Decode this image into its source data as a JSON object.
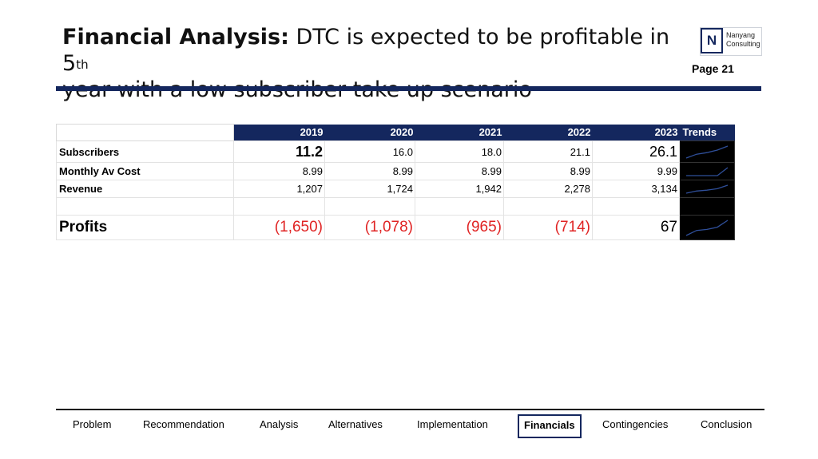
{
  "header": {
    "title_bold": "Financial Analysis:",
    "title_rest": " DTC is expected to be profitable in 5",
    "title_sup": "th",
    "title_line2": "year with a low subscriber take up scenario",
    "page": "Page 21"
  },
  "logo": {
    "letter": "N",
    "name_line1": "Nanyang",
    "name_line2": "Consulting"
  },
  "table": {
    "years": [
      "2019",
      "2020",
      "2021",
      "2022",
      "2023"
    ],
    "trends_label": "Trends",
    "rows": [
      {
        "label": "Subscribers",
        "values": [
          "11.2",
          "16.0",
          "18.0",
          "21.1",
          "26.1"
        ]
      },
      {
        "label": "Monthly Av Cost",
        "values": [
          "8.99",
          "8.99",
          "8.99",
          "8.99",
          "9.99"
        ]
      },
      {
        "label": "Revenue",
        "values": [
          "1,207",
          "1,724",
          "1,942",
          "2,278",
          "3,134"
        ]
      },
      {
        "label": "Profits",
        "values": [
          "(1,650)",
          "(1,078)",
          "(965)",
          "(714)",
          "67"
        ]
      }
    ]
  },
  "sparklines": {
    "color": "#2f4f9a",
    "subscribers": [
      11.2,
      16.0,
      18.0,
      21.1,
      26.1
    ],
    "cost": [
      8.99,
      8.99,
      8.99,
      8.99,
      9.99
    ],
    "revenue": [
      1207,
      1724,
      1942,
      2278,
      3134
    ],
    "profits": [
      -1650,
      -1078,
      -965,
      -714,
      67
    ]
  },
  "nav": {
    "items": [
      "Problem",
      "Recommendation",
      "Analysis",
      "Alternatives",
      "Implementation",
      "Financials",
      "Contingencies",
      "Conclusion"
    ],
    "active": "Financials"
  }
}
